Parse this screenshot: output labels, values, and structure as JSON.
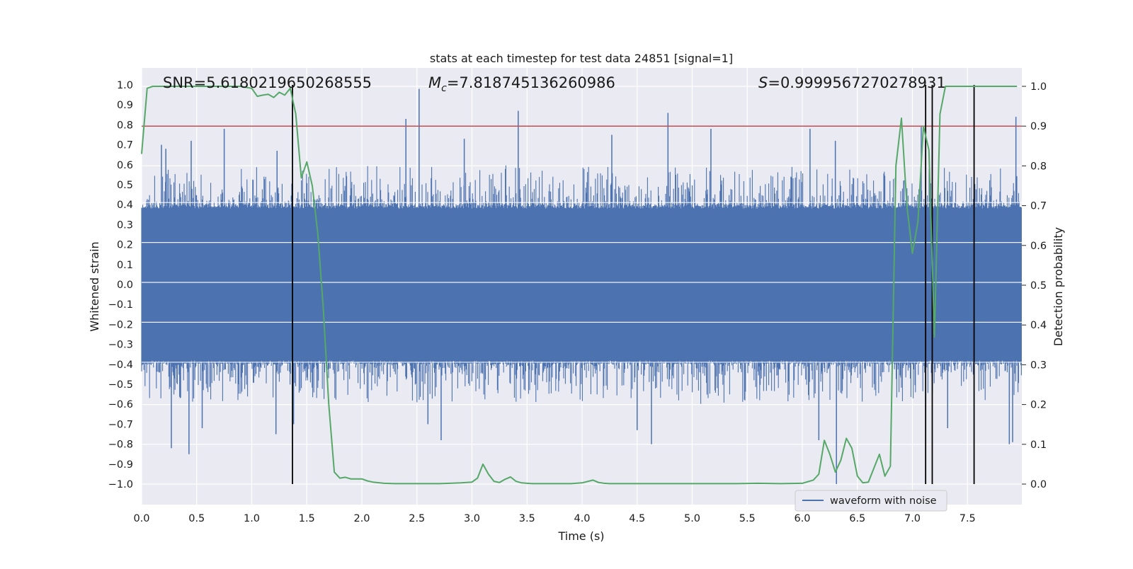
{
  "chart_data": {
    "type": "line",
    "title": "stats at each timestep for test data 24851 [signal=1]",
    "xlabel": "Time (s)",
    "ylabel": "Whitened strain",
    "y2label": "Detection probability",
    "xlim": [
      0.0,
      8.0
    ],
    "ylim": [
      -1.08,
      1.1
    ],
    "y2lim": [
      -0.05,
      1.05
    ],
    "xticks": [
      0.0,
      0.5,
      1.0,
      1.5,
      2.0,
      2.5,
      3.0,
      3.5,
      4.0,
      4.5,
      5.0,
      5.5,
      6.0,
      6.5,
      7.0,
      7.5
    ],
    "xtick_labels": [
      "0.0",
      "0.5",
      "1.0",
      "1.5",
      "2.0",
      "2.5",
      "3.0",
      "3.5",
      "4.0",
      "4.5",
      "5.0",
      "5.5",
      "6.0",
      "6.5",
      "7.0",
      "7.5"
    ],
    "yticks": [
      1.0,
      0.9,
      0.8,
      0.7,
      0.6,
      0.5,
      0.4,
      0.3,
      0.2,
      0.1,
      0.0,
      -0.1,
      -0.2,
      -0.3,
      -0.4,
      -0.5,
      -0.6,
      -0.7,
      -0.8,
      -0.9,
      -1.0
    ],
    "ytick_labels": [
      "1.0",
      "0.9",
      "0.8",
      "0.7",
      "0.6",
      "0.5",
      "0.4",
      "0.3",
      "0.2",
      "0.1",
      "0.0",
      "−0.1",
      "−0.2",
      "−0.3",
      "−0.4",
      "−0.5",
      "−0.6",
      "−0.7",
      "−0.8",
      "−0.9",
      "−1.0"
    ],
    "y2ticks": [
      0.0,
      0.1,
      0.2,
      0.3,
      0.4,
      0.5,
      0.6,
      0.7,
      0.8,
      0.9,
      1.0
    ],
    "y2tick_labels": [
      "0.0",
      "0.1",
      "0.2",
      "0.3",
      "0.4",
      "0.5",
      "0.6",
      "0.7",
      "0.8",
      "0.9",
      "1.0"
    ],
    "annotations": {
      "snr": "SNR=5.6180219650268555",
      "mc_symbol": "M",
      "mc_subscript": "c",
      "mc_value": "=7.818745136260986",
      "s_symbol": "S",
      "s_value": "=0.9999567270278931"
    },
    "threshold": {
      "axis": "right",
      "value": 0.9,
      "color": "#c44e52"
    },
    "vertical_lines": {
      "color": "#000000",
      "axis": "left",
      "y_range": [
        -1.0,
        1.0
      ],
      "x": [
        1.37,
        7.12,
        7.18,
        7.56
      ]
    },
    "series": [
      {
        "name": "waveform with noise",
        "axis": "left",
        "color": "#4c72b0",
        "kind": "noise",
        "x_range": [
          0.0,
          7.99
        ],
        "amplitude_upper_core": 0.38,
        "amplitude_lower_core": 0.38,
        "peaks": [
          [
            0.18,
            0.7
          ],
          [
            0.22,
            0.68
          ],
          [
            0.45,
            0.72
          ],
          [
            0.75,
            0.78
          ],
          [
            1.23,
            0.67
          ],
          [
            2.4,
            0.83
          ],
          [
            2.52,
            0.98
          ],
          [
            2.93,
            0.73
          ],
          [
            3.42,
            0.87
          ],
          [
            4.27,
            0.75
          ],
          [
            4.78,
            0.86
          ],
          [
            5.17,
            0.78
          ],
          [
            6.07,
            0.78
          ],
          [
            6.3,
            0.72
          ],
          [
            7.08,
            0.79
          ],
          [
            7.94,
            0.84
          ]
        ],
        "troughs": [
          [
            0.27,
            -0.82
          ],
          [
            0.43,
            -0.85
          ],
          [
            0.55,
            -0.72
          ],
          [
            1.22,
            -0.75
          ],
          [
            1.38,
            -0.7
          ],
          [
            2.6,
            -0.7
          ],
          [
            2.72,
            -0.78
          ],
          [
            4.5,
            -0.73
          ],
          [
            4.63,
            -0.8
          ],
          [
            6.15,
            -0.78
          ],
          [
            6.31,
            -1.0
          ],
          [
            7.32,
            -0.72
          ],
          [
            7.88,
            -0.8
          ],
          [
            7.91,
            -0.79
          ]
        ]
      },
      {
        "name": "detection probability",
        "axis": "right",
        "color": "#55a868",
        "x": [
          0.0,
          0.05,
          0.1,
          0.15,
          0.2,
          0.3,
          0.4,
          0.5,
          0.6,
          0.7,
          0.8,
          0.9,
          1.0,
          1.05,
          1.1,
          1.15,
          1.2,
          1.25,
          1.3,
          1.35,
          1.4,
          1.45,
          1.5,
          1.55,
          1.6,
          1.65,
          1.7,
          1.75,
          1.8,
          1.85,
          1.9,
          1.95,
          2.0,
          2.05,
          2.1,
          2.2,
          2.3,
          2.4,
          2.5,
          2.6,
          2.7,
          2.8,
          2.9,
          3.0,
          3.05,
          3.1,
          3.15,
          3.2,
          3.25,
          3.3,
          3.35,
          3.4,
          3.45,
          3.5,
          3.55,
          3.6,
          3.7,
          3.8,
          3.9,
          4.0,
          4.1,
          4.15,
          4.2,
          4.25,
          4.3,
          4.4,
          4.5,
          4.6,
          4.7,
          4.8,
          4.9,
          5.0,
          5.2,
          5.4,
          5.6,
          5.8,
          6.0,
          6.1,
          6.15,
          6.2,
          6.25,
          6.3,
          6.35,
          6.4,
          6.45,
          6.5,
          6.55,
          6.6,
          6.65,
          6.7,
          6.75,
          6.8,
          6.85,
          6.9,
          6.95,
          7.0,
          7.05,
          7.1,
          7.15,
          7.2,
          7.25,
          7.3,
          7.35,
          7.4,
          7.45,
          7.5,
          7.55,
          7.6,
          7.65,
          7.7,
          7.75,
          7.8,
          7.85,
          7.9,
          7.95
        ],
        "y": [
          0.83,
          0.995,
          1.0,
          1.0,
          1.0,
          1.0,
          1.0,
          1.0,
          1.0,
          1.0,
          1.0,
          1.0,
          0.995,
          0.975,
          0.978,
          0.98,
          0.972,
          0.985,
          0.978,
          0.995,
          0.93,
          0.77,
          0.81,
          0.75,
          0.63,
          0.44,
          0.2,
          0.03,
          0.015,
          0.017,
          0.013,
          0.013,
          0.013,
          0.008,
          0.005,
          0.002,
          0.001,
          0.001,
          0.001,
          0.001,
          0.001,
          0.002,
          0.003,
          0.005,
          0.015,
          0.05,
          0.025,
          0.007,
          0.004,
          0.012,
          0.018,
          0.007,
          0.003,
          0.002,
          0.001,
          0.001,
          0.001,
          0.001,
          0.001,
          0.003,
          0.01,
          0.004,
          0.002,
          0.001,
          0.001,
          0.001,
          0.001,
          0.001,
          0.001,
          0.001,
          0.001,
          0.001,
          0.001,
          0.001,
          0.002,
          0.001,
          0.002,
          0.01,
          0.025,
          0.11,
          0.075,
          0.03,
          0.06,
          0.115,
          0.09,
          0.02,
          0.003,
          0.005,
          0.04,
          0.075,
          0.02,
          0.045,
          0.8,
          0.92,
          0.7,
          0.58,
          0.66,
          0.9,
          0.84,
          0.37,
          0.93,
          1.0,
          1.0,
          1.0,
          1.0,
          1.0,
          1.0,
          1.0,
          1.0,
          1.0,
          1.0,
          1.0,
          1.0,
          1.0,
          1.0
        ]
      }
    ],
    "legend": {
      "placement": "lower-right",
      "entries": [
        "waveform with noise"
      ]
    },
    "grid": true
  }
}
